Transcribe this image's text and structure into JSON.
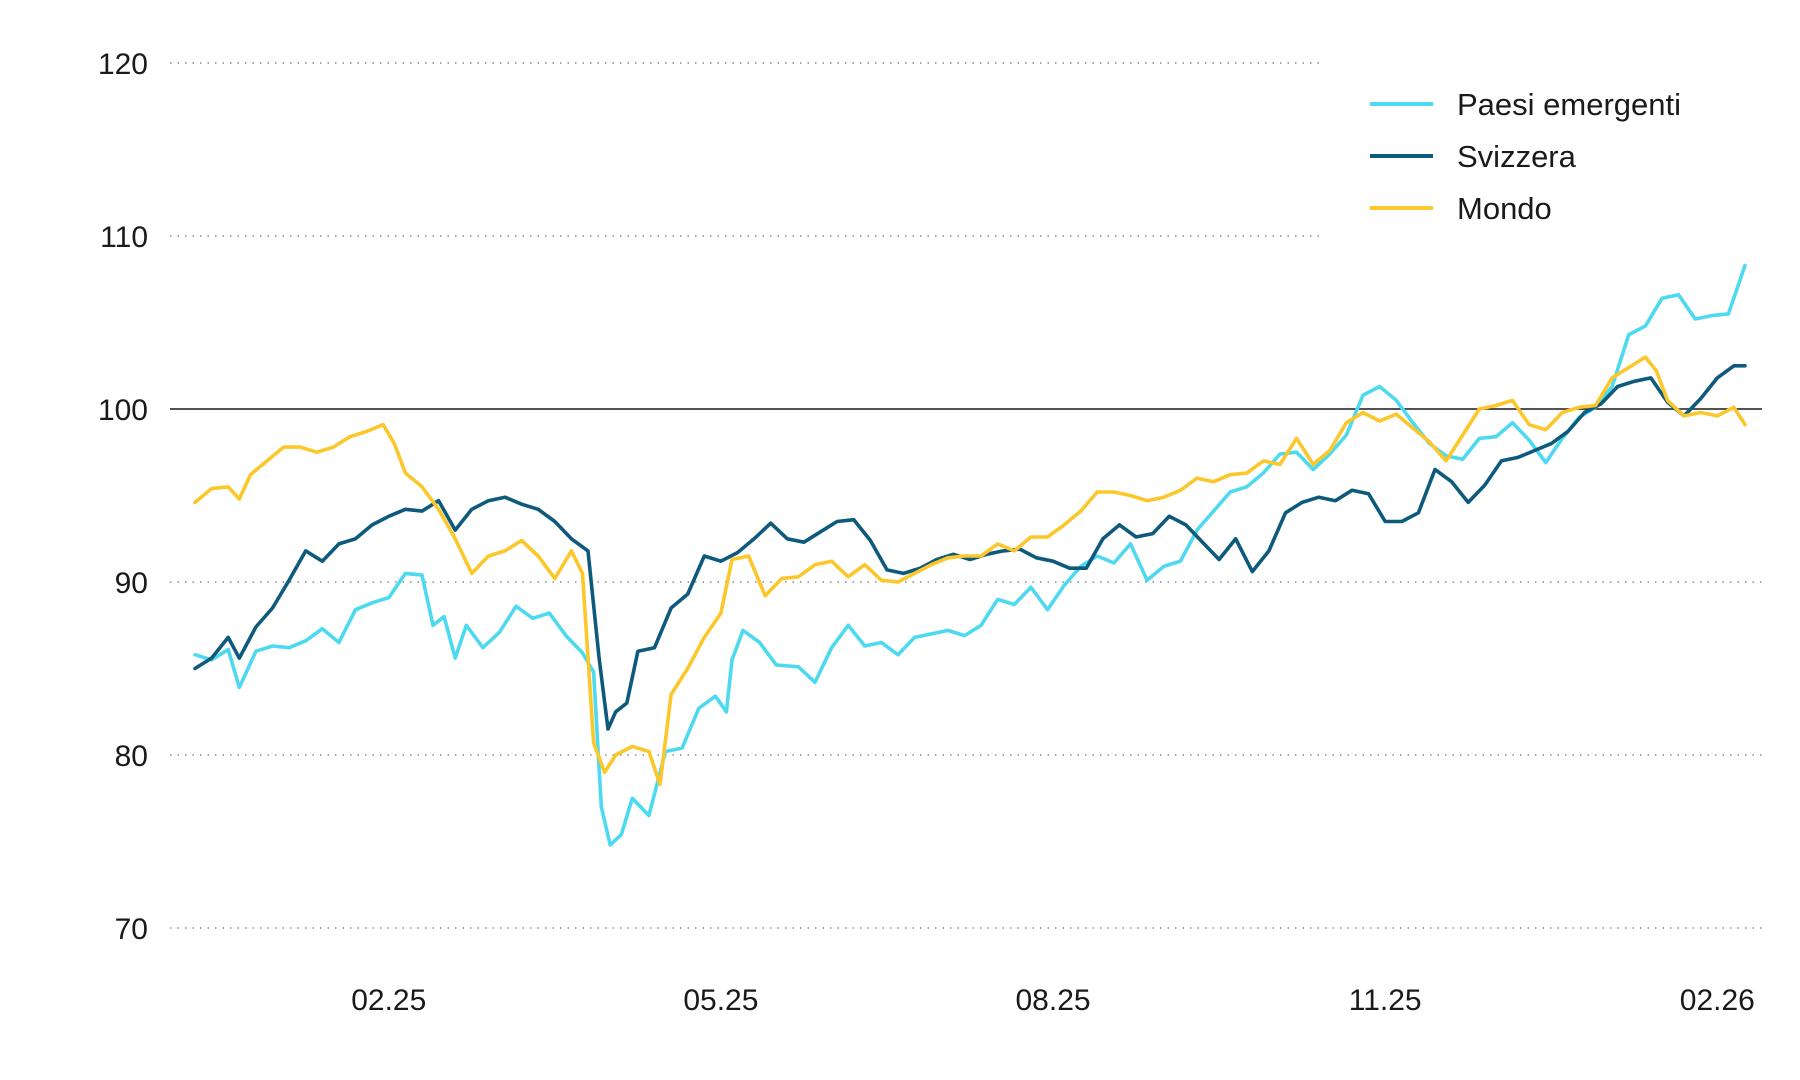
{
  "chart_data": {
    "type": "line",
    "title": "",
    "xlabel": "",
    "ylabel": "",
    "ylim": [
      70,
      120
    ],
    "y_ticks": [
      "120",
      "110",
      "100",
      "90",
      "80",
      "70"
    ],
    "x_ticks": [
      "02.25",
      "05.25",
      "08.25",
      "11.25",
      "02.26"
    ],
    "x_tick_months": [
      1,
      4,
      7,
      10,
      13
    ],
    "x_range_months": [
      -0.75,
      13.25
    ],
    "reference_line": 100,
    "grid": "horizontal dotted",
    "legend_position": "top-right",
    "series": [
      {
        "name": "Paesi emergenti",
        "color": "#4dd9f0",
        "points": [
          [
            -0.75,
            85.8
          ],
          [
            -0.6,
            85.5
          ],
          [
            -0.45,
            86.1
          ],
          [
            -0.35,
            83.9
          ],
          [
            -0.2,
            86
          ],
          [
            -0.05,
            86.3
          ],
          [
            0.1,
            86.2
          ],
          [
            0.25,
            86.6
          ],
          [
            0.4,
            87.3
          ],
          [
            0.55,
            86.5
          ],
          [
            0.7,
            88.4
          ],
          [
            0.85,
            88.8
          ],
          [
            1.0,
            89.1
          ],
          [
            1.15,
            90.5
          ],
          [
            1.3,
            90.4
          ],
          [
            1.4,
            87.5
          ],
          [
            1.5,
            88
          ],
          [
            1.6,
            85.6
          ],
          [
            1.7,
            87.5
          ],
          [
            1.85,
            86.2
          ],
          [
            2.0,
            87.1
          ],
          [
            2.15,
            88.6
          ],
          [
            2.3,
            87.9
          ],
          [
            2.45,
            88.2
          ],
          [
            2.6,
            86.9
          ],
          [
            2.75,
            85.9
          ],
          [
            2.85,
            84.8
          ],
          [
            2.92,
            77
          ],
          [
            3.0,
            74.8
          ],
          [
            3.1,
            75.4
          ],
          [
            3.2,
            77.5
          ],
          [
            3.35,
            76.5
          ],
          [
            3.5,
            80.2
          ],
          [
            3.65,
            80.4
          ],
          [
            3.8,
            82.7
          ],
          [
            3.95,
            83.4
          ],
          [
            4.05,
            82.5
          ],
          [
            4.1,
            85.5
          ],
          [
            4.2,
            87.2
          ],
          [
            4.35,
            86.5
          ],
          [
            4.5,
            85.2
          ],
          [
            4.7,
            85.1
          ],
          [
            4.85,
            84.2
          ],
          [
            5.0,
            86.2
          ],
          [
            5.15,
            87.5
          ],
          [
            5.3,
            86.3
          ],
          [
            5.45,
            86.5
          ],
          [
            5.6,
            85.8
          ],
          [
            5.75,
            86.8
          ],
          [
            5.9,
            87
          ],
          [
            6.05,
            87.2
          ],
          [
            6.2,
            86.9
          ],
          [
            6.35,
            87.5
          ],
          [
            6.5,
            89
          ],
          [
            6.65,
            88.7
          ],
          [
            6.8,
            89.7
          ],
          [
            6.95,
            88.4
          ],
          [
            7.1,
            89.8
          ],
          [
            7.25,
            90.9
          ],
          [
            7.4,
            91.5
          ],
          [
            7.55,
            91.1
          ],
          [
            7.7,
            92.2
          ],
          [
            7.85,
            90.1
          ],
          [
            8.0,
            90.9
          ],
          [
            8.15,
            91.2
          ],
          [
            8.3,
            93
          ],
          [
            8.45,
            94.1
          ],
          [
            8.6,
            95.2
          ],
          [
            8.75,
            95.5
          ],
          [
            8.9,
            96.3
          ],
          [
            9.05,
            97.4
          ],
          [
            9.2,
            97.5
          ],
          [
            9.35,
            96.5
          ],
          [
            9.5,
            97.4
          ],
          [
            9.65,
            98.5
          ],
          [
            9.8,
            100.8
          ],
          [
            9.95,
            101.3
          ],
          [
            10.1,
            100.5
          ],
          [
            10.25,
            99.2
          ],
          [
            10.4,
            98
          ],
          [
            10.55,
            97.3
          ],
          [
            10.7,
            97.1
          ],
          [
            10.85,
            98.3
          ],
          [
            11.0,
            98.4
          ],
          [
            11.15,
            99.2
          ],
          [
            11.3,
            98.2
          ],
          [
            11.45,
            96.9
          ],
          [
            11.6,
            98.3
          ],
          [
            11.75,
            99.5
          ],
          [
            11.9,
            100.1
          ],
          [
            12.05,
            101.3
          ],
          [
            12.2,
            104.3
          ],
          [
            12.35,
            104.8
          ],
          [
            12.5,
            106.4
          ],
          [
            12.65,
            106.6
          ],
          [
            12.8,
            105.2
          ],
          [
            12.95,
            105.4
          ],
          [
            13.1,
            105.5
          ],
          [
            13.25,
            108.3
          ]
        ]
      },
      {
        "name": "Svizzera",
        "color": "#0d5a7c",
        "points": [
          [
            -0.75,
            85
          ],
          [
            -0.6,
            85.6
          ],
          [
            -0.45,
            86.8
          ],
          [
            -0.35,
            85.6
          ],
          [
            -0.2,
            87.4
          ],
          [
            -0.05,
            88.5
          ],
          [
            0.1,
            90.1
          ],
          [
            0.25,
            91.8
          ],
          [
            0.4,
            91.2
          ],
          [
            0.55,
            92.2
          ],
          [
            0.7,
            92.5
          ],
          [
            0.85,
            93.3
          ],
          [
            1.0,
            93.8
          ],
          [
            1.15,
            94.2
          ],
          [
            1.3,
            94.1
          ],
          [
            1.45,
            94.7
          ],
          [
            1.6,
            93
          ],
          [
            1.75,
            94.2
          ],
          [
            1.9,
            94.7
          ],
          [
            2.05,
            94.9
          ],
          [
            2.2,
            94.5
          ],
          [
            2.35,
            94.2
          ],
          [
            2.5,
            93.5
          ],
          [
            2.65,
            92.5
          ],
          [
            2.8,
            91.8
          ],
          [
            2.9,
            85.6
          ],
          [
            2.98,
            81.5
          ],
          [
            3.05,
            82.5
          ],
          [
            3.15,
            83
          ],
          [
            3.25,
            86
          ],
          [
            3.4,
            86.2
          ],
          [
            3.55,
            88.5
          ],
          [
            3.7,
            89.3
          ],
          [
            3.85,
            91.5
          ],
          [
            4.0,
            91.2
          ],
          [
            4.15,
            91.7
          ],
          [
            4.3,
            92.5
          ],
          [
            4.45,
            93.4
          ],
          [
            4.6,
            92.5
          ],
          [
            4.75,
            92.3
          ],
          [
            4.9,
            92.9
          ],
          [
            5.05,
            93.5
          ],
          [
            5.2,
            93.6
          ],
          [
            5.35,
            92.4
          ],
          [
            5.5,
            90.7
          ],
          [
            5.65,
            90.5
          ],
          [
            5.8,
            90.8
          ],
          [
            5.95,
            91.3
          ],
          [
            6.1,
            91.6
          ],
          [
            6.25,
            91.3
          ],
          [
            6.4,
            91.6
          ],
          [
            6.55,
            91.8
          ],
          [
            6.7,
            91.9
          ],
          [
            6.85,
            91.4
          ],
          [
            7.0,
            91.2
          ],
          [
            7.15,
            90.8
          ],
          [
            7.3,
            90.8
          ],
          [
            7.45,
            92.5
          ],
          [
            7.6,
            93.3
          ],
          [
            7.75,
            92.6
          ],
          [
            7.9,
            92.8
          ],
          [
            8.05,
            93.8
          ],
          [
            8.2,
            93.3
          ],
          [
            8.35,
            92.3
          ],
          [
            8.5,
            91.3
          ],
          [
            8.65,
            92.5
          ],
          [
            8.8,
            90.6
          ],
          [
            8.95,
            91.8
          ],
          [
            9.1,
            94
          ],
          [
            9.25,
            94.6
          ],
          [
            9.4,
            94.9
          ],
          [
            9.55,
            94.7
          ],
          [
            9.7,
            95.3
          ],
          [
            9.85,
            95.1
          ],
          [
            10.0,
            93.5
          ],
          [
            10.15,
            93.5
          ],
          [
            10.3,
            94
          ],
          [
            10.45,
            96.5
          ],
          [
            10.6,
            95.8
          ],
          [
            10.75,
            94.6
          ],
          [
            10.9,
            95.6
          ],
          [
            11.05,
            97
          ],
          [
            11.2,
            97.2
          ],
          [
            11.35,
            97.6
          ],
          [
            11.5,
            98
          ],
          [
            11.65,
            98.7
          ],
          [
            11.8,
            99.8
          ],
          [
            11.95,
            100.3
          ],
          [
            12.1,
            101.3
          ],
          [
            12.25,
            101.6
          ],
          [
            12.4,
            101.8
          ],
          [
            12.55,
            100.4
          ],
          [
            12.7,
            99.6
          ],
          [
            12.85,
            100.6
          ],
          [
            13.0,
            101.8
          ],
          [
            13.15,
            102.5
          ],
          [
            13.25,
            102.5
          ]
        ]
      },
      {
        "name": "Mondo",
        "color": "#fcc72a",
        "points": [
          [
            -0.75,
            94.6
          ],
          [
            -0.6,
            95.4
          ],
          [
            -0.45,
            95.5
          ],
          [
            -0.35,
            94.8
          ],
          [
            -0.25,
            96.2
          ],
          [
            -0.1,
            97
          ],
          [
            0.05,
            97.8
          ],
          [
            0.2,
            97.8
          ],
          [
            0.35,
            97.5
          ],
          [
            0.5,
            97.8
          ],
          [
            0.65,
            98.4
          ],
          [
            0.8,
            98.7
          ],
          [
            0.95,
            99.1
          ],
          [
            1.05,
            98
          ],
          [
            1.15,
            96.3
          ],
          [
            1.3,
            95.5
          ],
          [
            1.45,
            94.2
          ],
          [
            1.6,
            92.5
          ],
          [
            1.75,
            90.5
          ],
          [
            1.9,
            91.5
          ],
          [
            2.05,
            91.8
          ],
          [
            2.2,
            92.4
          ],
          [
            2.35,
            91.5
          ],
          [
            2.5,
            90.2
          ],
          [
            2.65,
            91.8
          ],
          [
            2.75,
            90.5
          ],
          [
            2.85,
            80.7
          ],
          [
            2.95,
            79
          ],
          [
            3.05,
            80
          ],
          [
            3.2,
            80.5
          ],
          [
            3.35,
            80.2
          ],
          [
            3.45,
            78.3
          ],
          [
            3.55,
            83.5
          ],
          [
            3.7,
            85
          ],
          [
            3.85,
            86.8
          ],
          [
            4.0,
            88.2
          ],
          [
            4.1,
            91.3
          ],
          [
            4.25,
            91.5
          ],
          [
            4.4,
            89.2
          ],
          [
            4.55,
            90.2
          ],
          [
            4.7,
            90.3
          ],
          [
            4.85,
            91
          ],
          [
            5.0,
            91.2
          ],
          [
            5.15,
            90.3
          ],
          [
            5.3,
            91
          ],
          [
            5.45,
            90.1
          ],
          [
            5.6,
            90
          ],
          [
            5.75,
            90.5
          ],
          [
            5.9,
            91
          ],
          [
            6.05,
            91.4
          ],
          [
            6.2,
            91.5
          ],
          [
            6.35,
            91.5
          ],
          [
            6.5,
            92.2
          ],
          [
            6.65,
            91.8
          ],
          [
            6.8,
            92.6
          ],
          [
            6.95,
            92.6
          ],
          [
            7.1,
            93.3
          ],
          [
            7.25,
            94.1
          ],
          [
            7.4,
            95.2
          ],
          [
            7.55,
            95.2
          ],
          [
            7.7,
            95
          ],
          [
            7.85,
            94.7
          ],
          [
            8.0,
            94.9
          ],
          [
            8.15,
            95.3
          ],
          [
            8.3,
            96
          ],
          [
            8.45,
            95.8
          ],
          [
            8.6,
            96.2
          ],
          [
            8.75,
            96.3
          ],
          [
            8.9,
            97
          ],
          [
            9.05,
            96.8
          ],
          [
            9.2,
            98.3
          ],
          [
            9.35,
            96.8
          ],
          [
            9.5,
            97.6
          ],
          [
            9.65,
            99.2
          ],
          [
            9.8,
            99.8
          ],
          [
            9.95,
            99.3
          ],
          [
            10.1,
            99.7
          ],
          [
            10.25,
            98.9
          ],
          [
            10.4,
            98.1
          ],
          [
            10.55,
            97
          ],
          [
            10.7,
            98.5
          ],
          [
            10.85,
            100
          ],
          [
            11.0,
            100.2
          ],
          [
            11.15,
            100.5
          ],
          [
            11.3,
            99.1
          ],
          [
            11.45,
            98.8
          ],
          [
            11.6,
            99.8
          ],
          [
            11.75,
            100.1
          ],
          [
            11.9,
            100.2
          ],
          [
            12.05,
            101.8
          ],
          [
            12.2,
            102.4
          ],
          [
            12.35,
            103
          ],
          [
            12.45,
            102.2
          ],
          [
            12.55,
            100.5
          ],
          [
            12.7,
            99.6
          ],
          [
            12.85,
            99.8
          ],
          [
            13.0,
            99.6
          ],
          [
            13.15,
            100.1
          ],
          [
            13.25,
            99.1
          ]
        ]
      }
    ]
  }
}
